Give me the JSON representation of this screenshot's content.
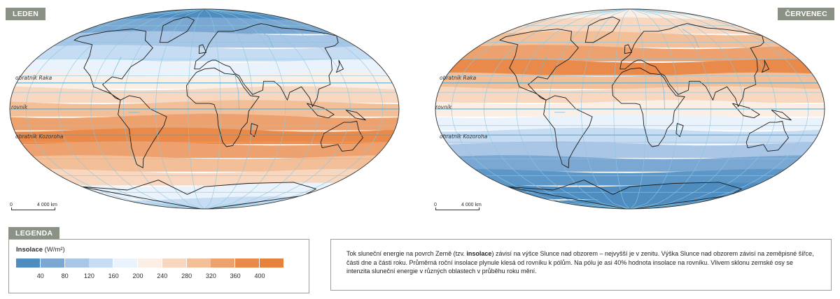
{
  "maps": {
    "left": {
      "tag": "LEDEN",
      "bands": [
        "#4f8dc0",
        "#7ba8d2",
        "#a9c6e6",
        "#c6dcf2",
        "#eaf2fb",
        "#fbeee4",
        "#f7d7bf",
        "#f2bf98",
        "#eda16e",
        "#e98a4a",
        "#eda16e",
        "#f2bf98",
        "#f7d7bf",
        "#eaf2fb",
        "#c6dcf2"
      ],
      "lat_labels": {
        "cancer": "obratník Raka",
        "equator": "rovník",
        "capricorn": "obratník Kozoroha"
      }
    },
    "right": {
      "tag": "ČERVENEC",
      "bands": [
        "#fbeee4",
        "#f7d7bf",
        "#f2bf98",
        "#eda16e",
        "#e98a4a",
        "#f2bf98",
        "#f7d7bf",
        "#fbeee4",
        "#eaf2fb",
        "#c6dcf2",
        "#a9c6e6",
        "#7ba8d2",
        "#5d97c7",
        "#4f8dc0",
        "#4f8dc0"
      ],
      "lat_labels": {
        "cancer": "obratník Raka",
        "equator": "rovník",
        "capricorn": "obratník Kozoroha"
      }
    }
  },
  "scale": {
    "zero": "0",
    "distance": "4 000 km"
  },
  "legend": {
    "tag": "LEGENDA",
    "title_bold": "Insolace",
    "title_unit": "(W/m²)",
    "colors": [
      "#4f8dc0",
      "#7ba8d2",
      "#a9c6e6",
      "#c6dcf2",
      "#eaf2fb",
      "#fbeee4",
      "#f7d7bf",
      "#f2bf98",
      "#eda16e",
      "#e98a4a",
      "#e7823d"
    ],
    "labels": [
      "40",
      "80",
      "120",
      "160",
      "200",
      "240",
      "280",
      "320",
      "360",
      "400"
    ]
  },
  "description": {
    "part1": "Tok sluneční energie na povrch Země (tzv. ",
    "bold": "insolace",
    "part2": ") závisí na výšce Slunce nad obzorem – nejvyšší je v zenitu. Výška Slunce nad obzorem závisí na zeměpisné šířce, části dne a části roku. Průměrná roční insolace plynule klesá od rovníku k pólům. Na pólu je asi 40% hodnota insolace na rovníku. Vlivem sklonu zemské osy se intenzita sluneční energie v různých oblastech v průběhu roku mění."
  }
}
